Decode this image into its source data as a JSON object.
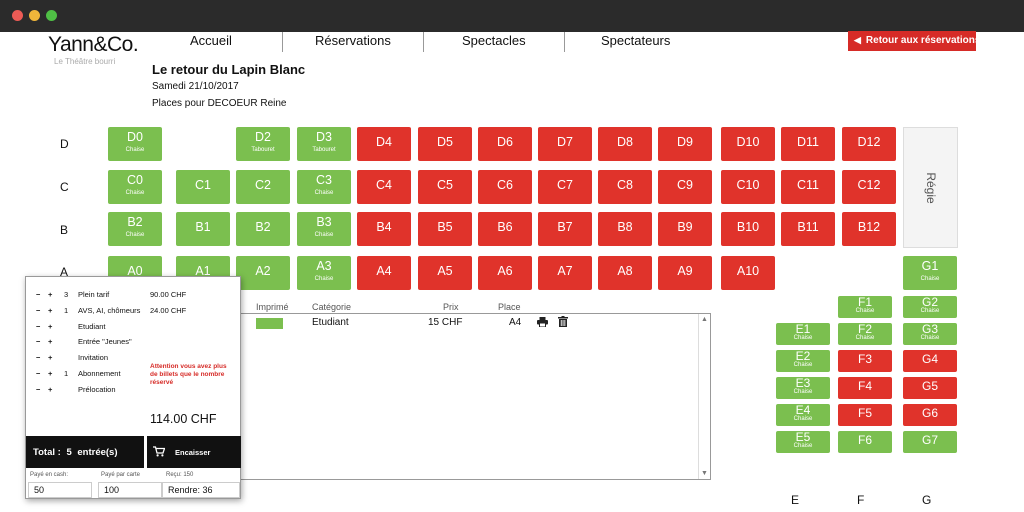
{
  "window": {
    "controls": [
      "close",
      "minimize",
      "maximize"
    ]
  },
  "header": {
    "logo": "Yann&Co.",
    "logo_sub": "Le Théâtre bourri",
    "nav": [
      "Accueil",
      "Réservations",
      "Spectacles",
      "Spectateurs"
    ],
    "back_button": "Retour aux réservations"
  },
  "show": {
    "title": "Le retour du Lapin Blanc",
    "date": "Samedi 21/10/2017",
    "places_for": "Places pour DECOEUR Reine"
  },
  "rows": [
    "D",
    "C",
    "B",
    "A"
  ],
  "columns_right": [
    "E",
    "F",
    "G"
  ],
  "regie_label": "Régie",
  "colors": {
    "available": "#7bbf4f",
    "taken": "#e0332b",
    "accent": "#d62b27"
  },
  "seats": [
    {
      "id": "D0",
      "sub": "Chaise",
      "status": "available"
    },
    {
      "id": "D2",
      "sub": "Tabouret",
      "status": "available"
    },
    {
      "id": "D3",
      "sub": "Tabouret",
      "status": "available"
    },
    {
      "id": "D4",
      "sub": "",
      "status": "taken"
    },
    {
      "id": "D5",
      "sub": "",
      "status": "taken"
    },
    {
      "id": "D6",
      "sub": "",
      "status": "taken"
    },
    {
      "id": "D7",
      "sub": "",
      "status": "taken"
    },
    {
      "id": "D8",
      "sub": "",
      "status": "taken"
    },
    {
      "id": "D9",
      "sub": "",
      "status": "taken"
    },
    {
      "id": "D10",
      "sub": "",
      "status": "taken"
    },
    {
      "id": "D11",
      "sub": "",
      "status": "taken"
    },
    {
      "id": "D12",
      "sub": "",
      "status": "taken"
    },
    {
      "id": "C0",
      "sub": "Chaise",
      "status": "available"
    },
    {
      "id": "C1",
      "sub": "",
      "status": "available"
    },
    {
      "id": "C2",
      "sub": "",
      "status": "available"
    },
    {
      "id": "C3",
      "sub": "Chaise",
      "status": "available"
    },
    {
      "id": "C4",
      "sub": "",
      "status": "taken"
    },
    {
      "id": "C5",
      "sub": "",
      "status": "taken"
    },
    {
      "id": "C6",
      "sub": "",
      "status": "taken"
    },
    {
      "id": "C7",
      "sub": "",
      "status": "taken"
    },
    {
      "id": "C8",
      "sub": "",
      "status": "taken"
    },
    {
      "id": "C9",
      "sub": "",
      "status": "taken"
    },
    {
      "id": "C10",
      "sub": "",
      "status": "taken"
    },
    {
      "id": "C11",
      "sub": "",
      "status": "taken"
    },
    {
      "id": "C12",
      "sub": "",
      "status": "taken"
    },
    {
      "id": "B2",
      "sub": "Chaise",
      "status": "available"
    },
    {
      "id": "B1",
      "sub": "",
      "status": "available"
    },
    {
      "id": "B2",
      "sub": "",
      "status": "available"
    },
    {
      "id": "B3",
      "sub": "Chaise",
      "status": "available"
    },
    {
      "id": "B4",
      "sub": "",
      "status": "taken"
    },
    {
      "id": "B5",
      "sub": "",
      "status": "taken"
    },
    {
      "id": "B6",
      "sub": "",
      "status": "taken"
    },
    {
      "id": "B7",
      "sub": "",
      "status": "taken"
    },
    {
      "id": "B8",
      "sub": "",
      "status": "taken"
    },
    {
      "id": "B9",
      "sub": "",
      "status": "taken"
    },
    {
      "id": "B10",
      "sub": "",
      "status": "taken"
    },
    {
      "id": "B11",
      "sub": "",
      "status": "taken"
    },
    {
      "id": "B12",
      "sub": "",
      "status": "taken"
    },
    {
      "id": "A0",
      "sub": "",
      "status": "available"
    },
    {
      "id": "A1",
      "sub": "",
      "status": "available"
    },
    {
      "id": "A2",
      "sub": "",
      "status": "available"
    },
    {
      "id": "A3",
      "sub": "Chaise",
      "status": "available"
    },
    {
      "id": "A4",
      "sub": "",
      "status": "taken"
    },
    {
      "id": "A5",
      "sub": "",
      "status": "taken"
    },
    {
      "id": "A6",
      "sub": "",
      "status": "taken"
    },
    {
      "id": "A7",
      "sub": "",
      "status": "taken"
    },
    {
      "id": "A8",
      "sub": "",
      "status": "taken"
    },
    {
      "id": "A9",
      "sub": "",
      "status": "taken"
    },
    {
      "id": "A10",
      "sub": "",
      "status": "taken"
    },
    {
      "id": "G1",
      "sub": "Chaise",
      "status": "available"
    },
    {
      "id": "F1",
      "sub": "Chaise",
      "status": "available"
    },
    {
      "id": "G2",
      "sub": "Chaise",
      "status": "available"
    },
    {
      "id": "E1",
      "sub": "Chaise",
      "status": "available"
    },
    {
      "id": "F2",
      "sub": "Chaise",
      "status": "available"
    },
    {
      "id": "G3",
      "sub": "Chaise",
      "status": "available"
    },
    {
      "id": "E2",
      "sub": "Chaise",
      "status": "available"
    },
    {
      "id": "F3",
      "sub": "",
      "status": "taken"
    },
    {
      "id": "G4",
      "sub": "",
      "status": "taken"
    },
    {
      "id": "E3",
      "sub": "Chaise",
      "status": "available"
    },
    {
      "id": "F4",
      "sub": "",
      "status": "taken"
    },
    {
      "id": "G5",
      "sub": "",
      "status": "taken"
    },
    {
      "id": "E4",
      "sub": "Chaise",
      "status": "available"
    },
    {
      "id": "F5",
      "sub": "",
      "status": "taken"
    },
    {
      "id": "G6",
      "sub": "",
      "status": "taken"
    },
    {
      "id": "E5",
      "sub": "Chaise",
      "status": "available"
    },
    {
      "id": "F6",
      "sub": "",
      "status": "available"
    },
    {
      "id": "G7",
      "sub": "",
      "status": "available"
    }
  ],
  "cart": {
    "headers": {
      "printed": "Imprimé",
      "category": "Catégorie",
      "price": "Prix",
      "place": "Place"
    },
    "row": {
      "category": "Etudiant",
      "price": "15 CHF",
      "place": "A4"
    }
  },
  "tickets": [
    {
      "qty": "3",
      "label": "Plein tarif",
      "price": "90.00 CHF"
    },
    {
      "qty": "1",
      "label": "AVS, AI, chômeurs",
      "price": "24.00 CHF"
    },
    {
      "qty": "",
      "label": "Etudiant",
      "price": ""
    },
    {
      "qty": "",
      "label": "Entrée \"Jeunes\"",
      "price": ""
    },
    {
      "qty": "",
      "label": "Invitation",
      "price": ""
    },
    {
      "qty": "1",
      "label": "Abonnement",
      "price": ""
    },
    {
      "qty": "",
      "label": "Prélocation",
      "price": ""
    }
  ],
  "warning": "Attention vous avez plus de billets que le nombre réservé",
  "total_amount": "114.00 CHF",
  "total": {
    "label": "Total :",
    "count": "5",
    "unit": "entrée(s)"
  },
  "pay_button": "Encaisser",
  "payment": {
    "cash_label": "Payé en cash:",
    "cash_value": "50",
    "card_label": "Payé par carte",
    "card_value": "100",
    "received_label": "Reçu: 150",
    "change": "Rendre: 36"
  }
}
